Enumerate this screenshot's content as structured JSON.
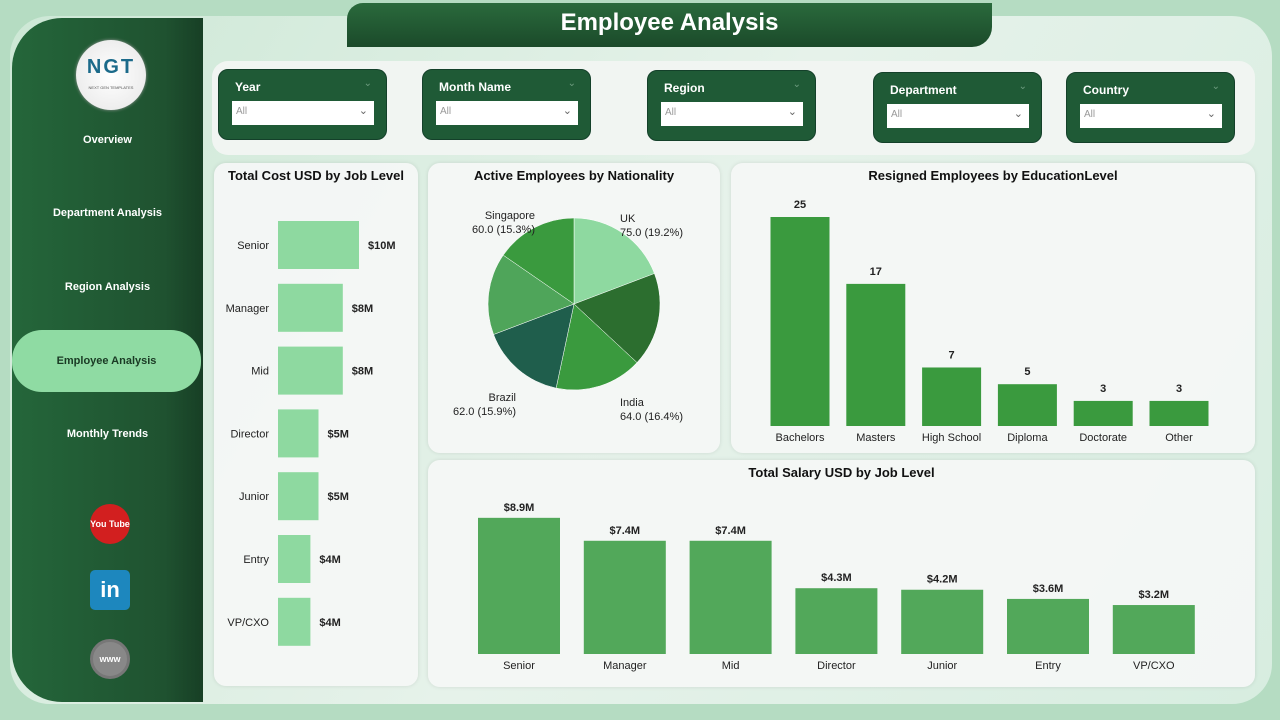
{
  "header": {
    "title": "Employee Analysis"
  },
  "logo": {
    "text": "NGT",
    "tagline": "NEXT GEN TEMPLATES"
  },
  "sidebar": {
    "items": [
      {
        "label": "Overview"
      },
      {
        "label": "Department Analysis"
      },
      {
        "label": "Region Analysis"
      },
      {
        "label": "Employee Analysis",
        "active": true
      },
      {
        "label": "Monthly Trends"
      }
    ],
    "social": [
      {
        "icon": "youtube-icon",
        "label": "You Tube"
      },
      {
        "icon": "linkedin-icon",
        "label": "in"
      },
      {
        "icon": "www-globe-icon",
        "label": "www"
      }
    ]
  },
  "filters": [
    {
      "label": "Year",
      "value": "All"
    },
    {
      "label": "Month Name",
      "value": "All"
    },
    {
      "label": "Region",
      "value": "All"
    },
    {
      "label": "Department",
      "value": "All"
    },
    {
      "label": "Country",
      "value": "All"
    }
  ],
  "colors": {
    "sidebar": "#1f5230",
    "active_nav": "#8fdba3",
    "cost_bar": "#8ed9a0",
    "resigned_bar": "#3a9a3e",
    "salary_bar": "#52a85a"
  },
  "chart_data": [
    {
      "type": "bar",
      "orientation": "horizontal",
      "title": "Total Cost USD by Job Level",
      "categories": [
        "Senior",
        "Manager",
        "Mid",
        "Director",
        "Junior",
        "Entry",
        "VP/CXO"
      ],
      "values": [
        10,
        8,
        8,
        5,
        5,
        4,
        4
      ],
      "data_labels": [
        "$10M",
        "$8M",
        "$8M",
        "$5M",
        "$5M",
        "$4M",
        "$4M"
      ],
      "unit": "M USD"
    },
    {
      "type": "pie",
      "title": "Active Employees by Nationality",
      "slices": [
        {
          "label": "UK",
          "value": 75.0,
          "pct": "19.2%",
          "color": "#8ed9a0"
        },
        {
          "label": "",
          "value": 69.0,
          "pct": "",
          "color": "#2c6e2f"
        },
        {
          "label": "India",
          "value": 64.0,
          "pct": "16.4%",
          "color": "#3a9a3e"
        },
        {
          "label": "Brazil",
          "value": 62.0,
          "pct": "15.9%",
          "color": "#1f5e4c"
        },
        {
          "label": "",
          "value": 60.0,
          "pct": "",
          "color": "#4fa55a"
        },
        {
          "label": "Singapore",
          "value": 60.0,
          "pct": "15.3%",
          "color": "#3a9a3e"
        }
      ]
    },
    {
      "type": "bar",
      "title": "Resigned Employees by EducationLevel",
      "categories": [
        "Bachelors",
        "Masters",
        "High School",
        "Diploma",
        "Doctorate",
        "Other"
      ],
      "values": [
        25,
        17,
        7,
        5,
        3,
        3
      ]
    },
    {
      "type": "bar",
      "title": "Total Salary USD by Job Level",
      "categories": [
        "Senior",
        "Manager",
        "Mid",
        "Director",
        "Junior",
        "Entry",
        "VP/CXO"
      ],
      "values": [
        8.9,
        7.4,
        7.4,
        4.3,
        4.2,
        3.6,
        3.2
      ],
      "data_labels": [
        "$8.9M",
        "$7.4M",
        "$7.4M",
        "$4.3M",
        "$4.2M",
        "$3.6M",
        "$3.2M"
      ],
      "unit": "M USD"
    }
  ]
}
